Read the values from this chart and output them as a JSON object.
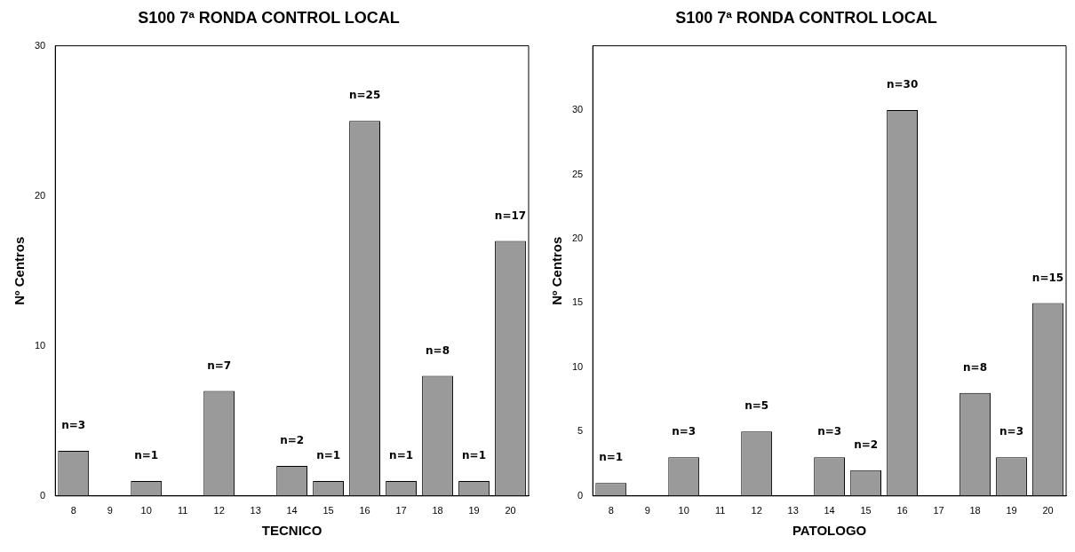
{
  "chart_data": [
    {
      "type": "bar",
      "title": "S100 7ª RONDA CONTROL LOCAL",
      "xlabel": "TECNICO",
      "ylabel": "Nº Centros",
      "categories": [
        "8",
        "9",
        "10",
        "11",
        "12",
        "13",
        "14",
        "15",
        "16",
        "17",
        "18",
        "19",
        "20"
      ],
      "values": [
        3,
        null,
        1,
        null,
        7,
        null,
        2,
        1,
        25,
        1,
        8,
        1,
        17
      ],
      "value_labels": [
        "n=3",
        null,
        "n=1",
        null,
        "n=7",
        null,
        "n=2",
        "n=1",
        "n=25",
        "n=1",
        "n=8",
        "n=1",
        "n=17"
      ],
      "color": "#9a9a9a",
      "ylim": [
        0,
        30
      ],
      "yticks": [
        0,
        10,
        20,
        30
      ]
    },
    {
      "type": "bar",
      "title": "S100 7ª RONDA CONTROL LOCAL",
      "xlabel": "PATOLOGO",
      "ylabel": "Nº Centros",
      "categories": [
        "8",
        "9",
        "10",
        "11",
        "12",
        "13",
        "14",
        "15",
        "16",
        "17",
        "18",
        "19",
        "20"
      ],
      "values": [
        1,
        null,
        3,
        null,
        5,
        null,
        3,
        2,
        30,
        null,
        8,
        3,
        15
      ],
      "value_labels": [
        "n=1",
        null,
        "n=3",
        null,
        "n=5",
        null,
        "n=3",
        "n=2",
        "n=30",
        null,
        "n=8",
        "n=3",
        "n=15"
      ],
      "color": "#9a9a9a",
      "ylim": [
        0,
        35
      ],
      "yticks": [
        0,
        5,
        10,
        15,
        20,
        25,
        30
      ]
    }
  ]
}
